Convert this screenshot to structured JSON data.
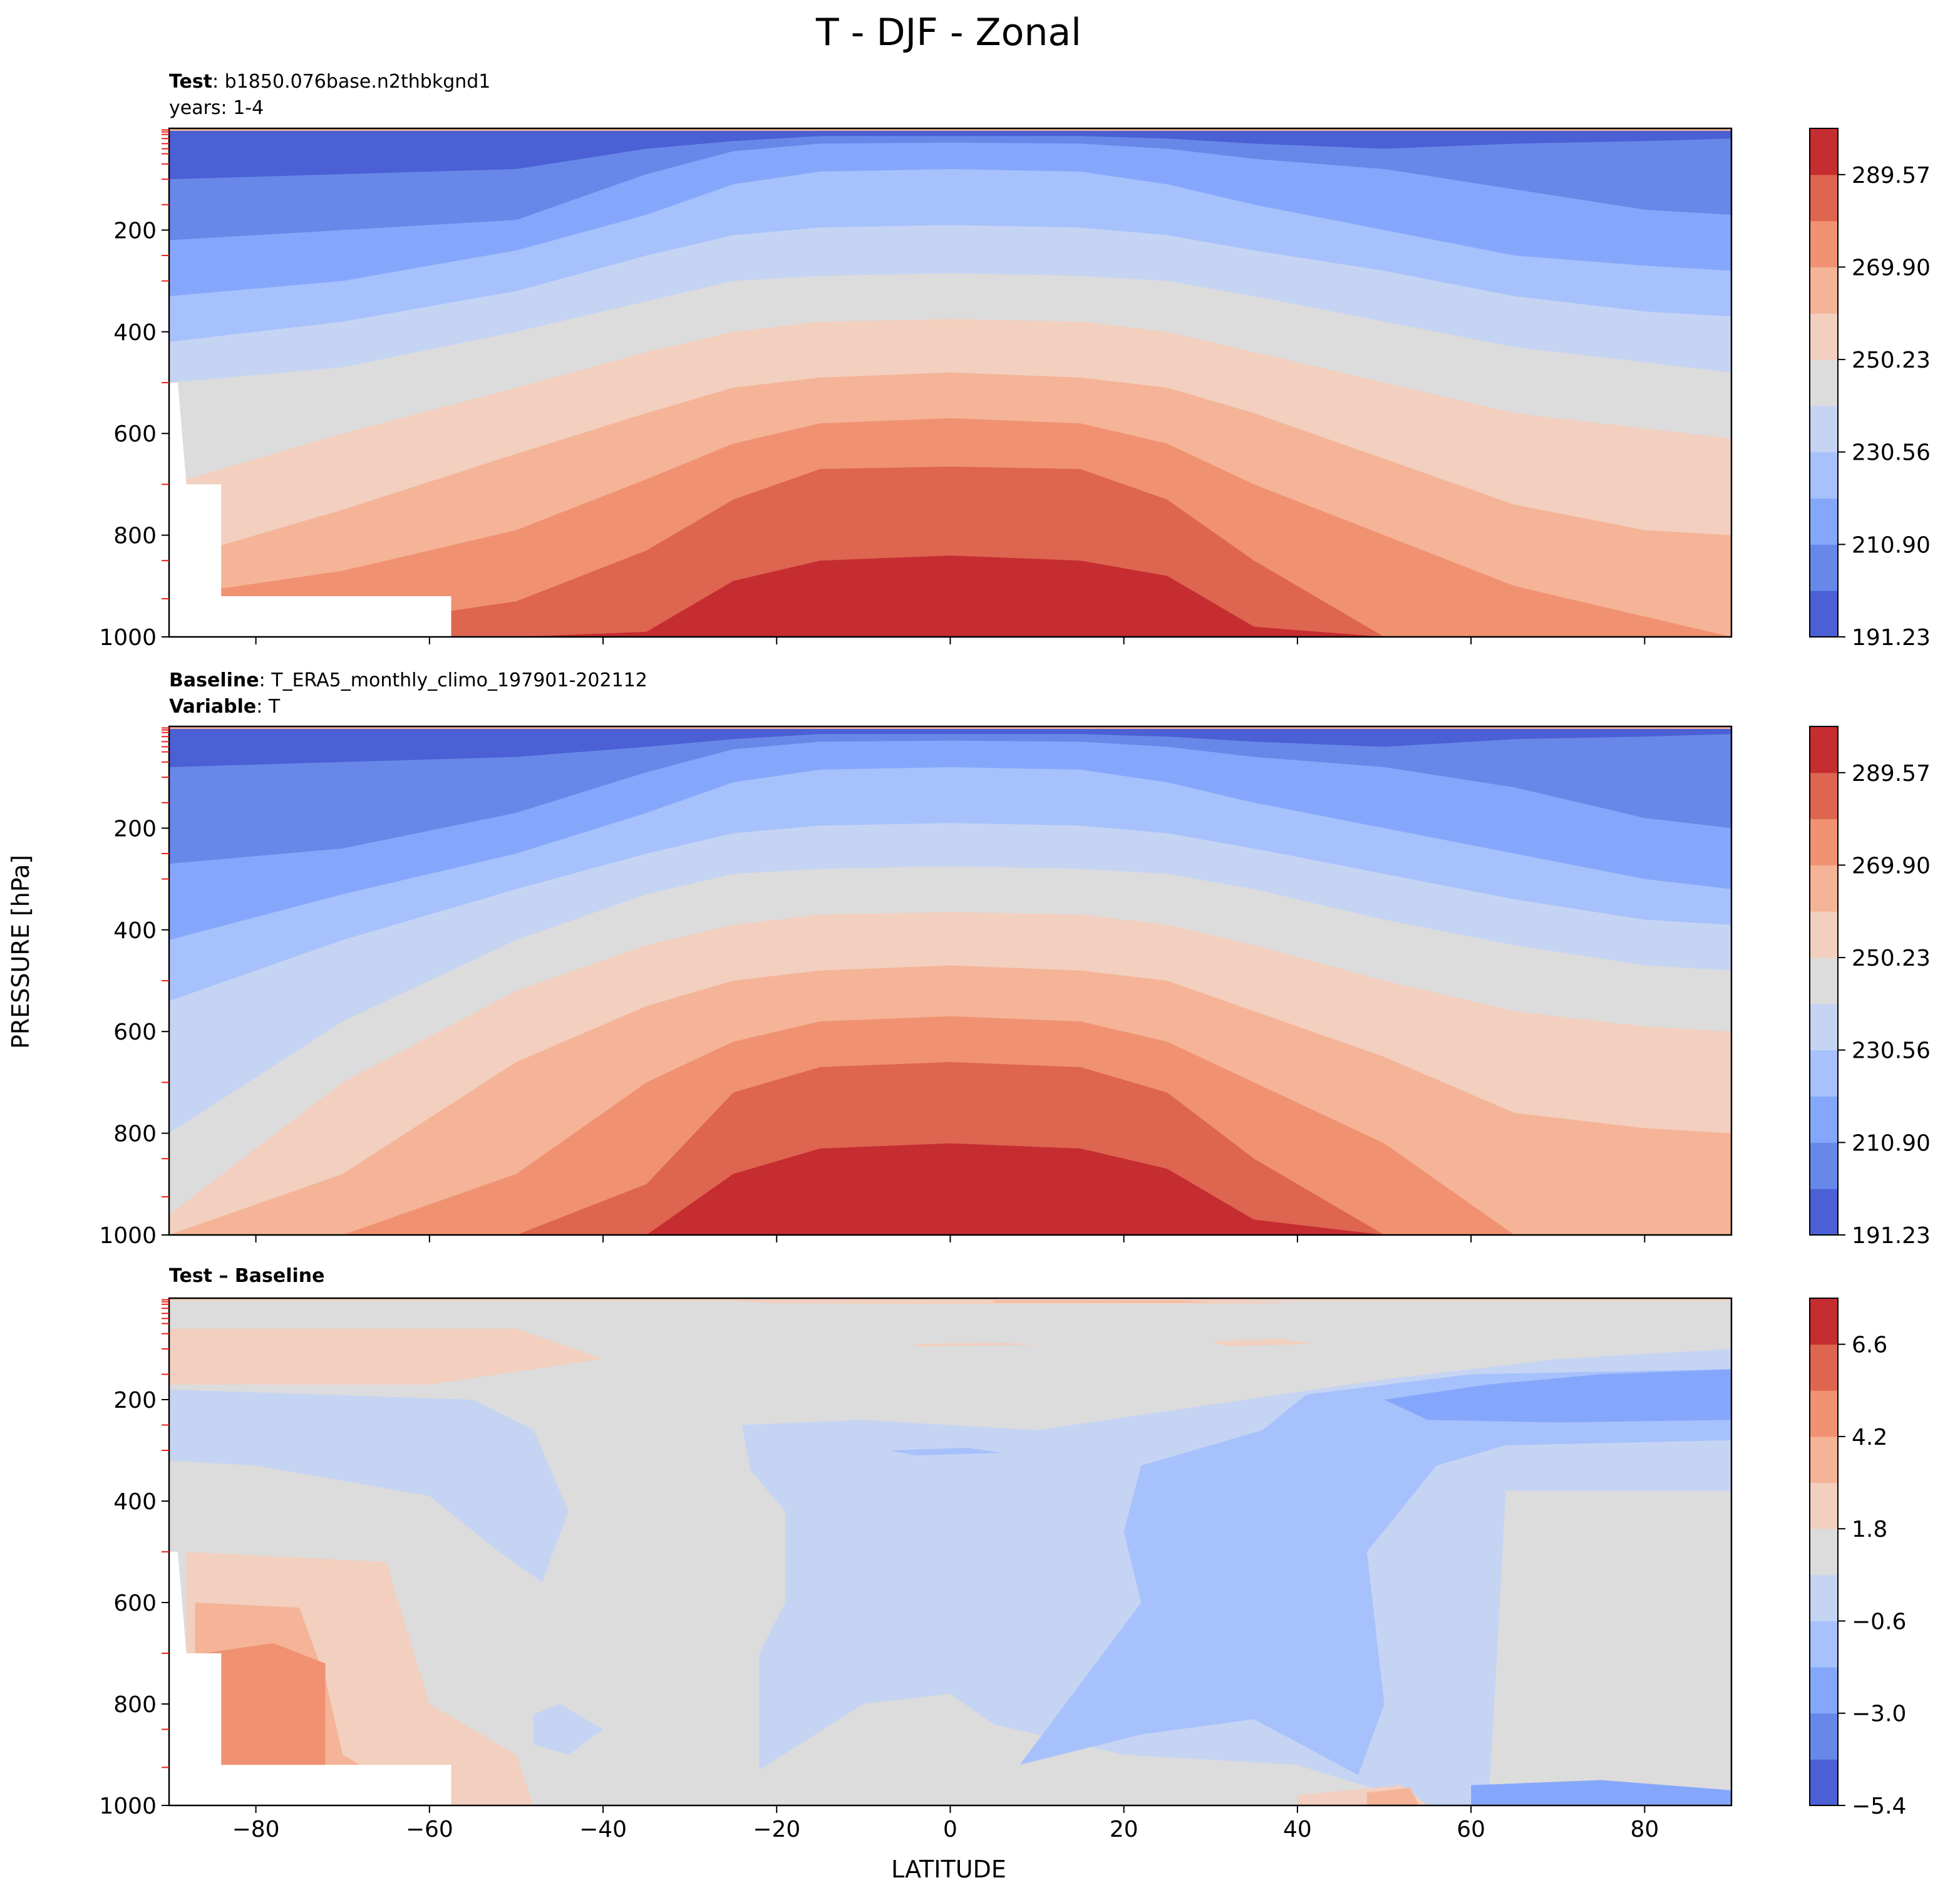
{
  "figure": {
    "title": "T - DJF - Zonal",
    "ylabel": "PRESSURE [hPa]",
    "xlabel": "LATITUDE"
  },
  "chart_data": [
    {
      "type": "contour",
      "id": "test",
      "header_lines": [
        {
          "bold": "Test",
          "text": ": b1850.076base.n2thbkgnd1"
        },
        {
          "bold": "",
          "text": "years: 1-4"
        }
      ],
      "x": {
        "label": "LATITUDE",
        "range": [
          -90,
          90
        ],
        "ticks": [
          -80,
          -60,
          -40,
          -20,
          0,
          20,
          40,
          60,
          80
        ],
        "tick_labels_shown": false
      },
      "y": {
        "label": "PRESSURE [hPa]",
        "range": [
          0,
          1000
        ],
        "inverted": true,
        "ticks": [
          200,
          400,
          600,
          800,
          1000
        ]
      },
      "levels": [
        191.23,
        201.07,
        210.9,
        220.73,
        230.56,
        240.4,
        250.23,
        260.07,
        269.9,
        279.73,
        289.57,
        299.4
      ],
      "colorbar_ticks": [
        "289.57",
        "269.90",
        "250.23",
        "230.56",
        "210.90",
        "191.23"
      ],
      "colors": [
        "#4b60d4",
        "#6788e9",
        "#85a7fb",
        "#a7c1fc",
        "#c5d4f3",
        "#dcdcdc",
        "#f2cfbe",
        "#f5b497",
        "#f09272",
        "#de6550",
        "#c52d31"
      ],
      "contours_lat": [
        -90,
        -70,
        -50,
        -35,
        -25,
        -15,
        0,
        15,
        25,
        35,
        50,
        65,
        80,
        90
      ],
      "contours_p": [
        [
          60,
          50,
          45,
          20,
          10,
          10,
          10,
          10,
          10,
          10,
          10,
          10,
          10,
          10
        ],
        [
          100,
          90,
          80,
          40,
          25,
          15,
          15,
          15,
          20,
          30,
          40,
          30,
          25,
          20
        ],
        [
          220,
          200,
          180,
          90,
          45,
          30,
          28,
          30,
          40,
          60,
          80,
          120,
          160,
          170
        ],
        [
          330,
          300,
          240,
          170,
          110,
          85,
          80,
          85,
          110,
          150,
          200,
          250,
          270,
          280
        ],
        [
          420,
          380,
          320,
          250,
          210,
          195,
          190,
          195,
          210,
          240,
          280,
          330,
          360,
          370
        ],
        [
          500,
          470,
          400,
          340,
          300,
          290,
          285,
          290,
          300,
          330,
          380,
          430,
          460,
          480
        ],
        [
          700,
          600,
          510,
          440,
          400,
          380,
          375,
          380,
          400,
          440,
          500,
          560,
          590,
          610
        ],
        [
          850,
          750,
          640,
          560,
          510,
          490,
          480,
          490,
          510,
          560,
          650,
          740,
          790,
          800
        ],
        [
          920,
          870,
          790,
          690,
          620,
          580,
          570,
          580,
          620,
          700,
          800,
          900,
          960,
          1000
        ],
        [
          1000,
          980,
          930,
          830,
          730,
          670,
          665,
          670,
          730,
          850,
          1000,
          1000,
          1000,
          1000
        ],
        [
          1000,
          1000,
          1000,
          990,
          890,
          850,
          840,
          850,
          880,
          980,
          1000,
          1000,
          1000,
          1000
        ]
      ],
      "missing_region": true
    },
    {
      "type": "contour",
      "id": "baseline",
      "header_lines": [
        {
          "bold": "Baseline",
          "text": ": T_ERA5_monthly_climo_197901-202112"
        },
        {
          "bold": "Variable",
          "text": ": T"
        }
      ],
      "x": {
        "label": "LATITUDE",
        "range": [
          -90,
          90
        ],
        "ticks": [
          -80,
          -60,
          -40,
          -20,
          0,
          20,
          40,
          60,
          80
        ],
        "tick_labels_shown": false
      },
      "y": {
        "label": "PRESSURE [hPa]",
        "range": [
          0,
          1000
        ],
        "inverted": true,
        "ticks": [
          200,
          400,
          600,
          800,
          1000
        ]
      },
      "levels": [
        191.23,
        201.07,
        210.9,
        220.73,
        230.56,
        240.4,
        250.23,
        260.07,
        269.9,
        279.73,
        289.57,
        299.4
      ],
      "colorbar_ticks": [
        "289.57",
        "269.90",
        "250.23",
        "230.56",
        "210.90",
        "191.23"
      ],
      "colors": [
        "#4b60d4",
        "#6788e9",
        "#85a7fb",
        "#a7c1fc",
        "#c5d4f3",
        "#dcdcdc",
        "#f2cfbe",
        "#f5b497",
        "#f09272",
        "#de6550",
        "#c52d31"
      ],
      "contours_lat": [
        -90,
        -70,
        -50,
        -35,
        -25,
        -15,
        0,
        15,
        25,
        35,
        50,
        65,
        80,
        90
      ],
      "contours_p": [
        [
          60,
          50,
          45,
          20,
          10,
          10,
          10,
          10,
          10,
          10,
          10,
          10,
          10,
          10
        ],
        [
          80,
          70,
          60,
          40,
          25,
          15,
          15,
          15,
          20,
          30,
          40,
          25,
          20,
          15
        ],
        [
          270,
          240,
          170,
          90,
          45,
          30,
          28,
          30,
          40,
          60,
          80,
          120,
          180,
          200
        ],
        [
          420,
          330,
          250,
          170,
          110,
          85,
          80,
          85,
          110,
          150,
          200,
          250,
          300,
          320
        ],
        [
          540,
          420,
          320,
          250,
          210,
          195,
          190,
          195,
          210,
          240,
          290,
          340,
          380,
          390
        ],
        [
          800,
          580,
          420,
          330,
          290,
          280,
          275,
          280,
          290,
          320,
          380,
          430,
          470,
          480
        ],
        [
          960,
          700,
          520,
          430,
          390,
          370,
          365,
          370,
          390,
          430,
          500,
          560,
          590,
          600
        ],
        [
          1000,
          880,
          660,
          550,
          500,
          480,
          470,
          480,
          500,
          560,
          650,
          760,
          790,
          800
        ],
        [
          1000,
          1000,
          880,
          700,
          620,
          580,
          570,
          580,
          620,
          700,
          820,
          1000,
          1000,
          1000
        ],
        [
          1000,
          1000,
          1000,
          900,
          720,
          670,
          660,
          670,
          720,
          850,
          1000,
          1000,
          1000,
          1000
        ],
        [
          1000,
          1000,
          1000,
          1000,
          880,
          830,
          820,
          830,
          870,
          970,
          1000,
          1000,
          1000,
          1000
        ]
      ],
      "missing_region": false
    },
    {
      "type": "contour",
      "id": "diff",
      "header_lines": [
        {
          "bold": "Test – Baseline",
          "text": ""
        }
      ],
      "x": {
        "label": "LATITUDE",
        "range": [
          -90,
          90
        ],
        "ticks": [
          -80,
          -60,
          -40,
          -20,
          0,
          20,
          40,
          60,
          80
        ],
        "tick_labels_shown": true
      },
      "y": {
        "label": "PRESSURE [hPa]",
        "range": [
          0,
          1000
        ],
        "inverted": true,
        "ticks": [
          200,
          400,
          600,
          800,
          1000
        ]
      },
      "levels": [
        -6.6,
        -5.4,
        -4.2,
        -3.0,
        -1.8,
        -0.6,
        0.6,
        1.8,
        3.0,
        4.2,
        5.4,
        6.6
      ],
      "colorbar_ticks": [
        "6.6",
        "4.2",
        "1.8",
        "−0.6",
        "−3.0",
        "−5.4"
      ],
      "colors": [
        "#4b60d4",
        "#6788e9",
        "#85a7fb",
        "#a7c1fc",
        "#c5d4f3",
        "#dcdcdc",
        "#f2cfbe",
        "#f5b497",
        "#f09272",
        "#de6550",
        "#c52d31"
      ],
      "regions": [
        {
          "level_index": 6,
          "polygon": [
            [
              -90,
              60
            ],
            [
              -50,
              60
            ],
            [
              -40,
              120
            ],
            [
              -60,
              170
            ],
            [
              -90,
              170
            ]
          ]
        },
        {
          "level_index": 6,
          "polygon": [
            [
              -88,
              500
            ],
            [
              -65,
              520
            ],
            [
              -60,
              800
            ],
            [
              -50,
              900
            ],
            [
              -48,
              1000
            ],
            [
              -88,
              1000
            ]
          ]
        },
        {
          "level_index": 7,
          "polygon": [
            [
              -87,
              600
            ],
            [
              -75,
              610
            ],
            [
              -72,
              750
            ],
            [
              -70,
              900
            ],
            [
              -60,
              1000
            ],
            [
              -87,
              1000
            ]
          ]
        },
        {
          "level_index": 8,
          "polygon": [
            [
              -86,
              700
            ],
            [
              -78,
              680
            ],
            [
              -72,
              720
            ],
            [
              -72,
              950
            ],
            [
              -80,
              990
            ],
            [
              -86,
              990
            ]
          ]
        },
        {
          "level_index": 3,
          "polygon": [
            [
              -90,
              240
            ],
            [
              -80,
              220
            ],
            [
              -65,
              215
            ],
            [
              -55,
              250
            ],
            [
              -65,
              290
            ],
            [
              -80,
              285
            ],
            [
              -90,
              280
            ]
          ]
        },
        {
          "level_index": 2,
          "polygon": [
            [
              -88,
              250
            ],
            [
              -75,
              240
            ],
            [
              -65,
              235
            ],
            [
              -60,
              255
            ],
            [
              -70,
              265
            ],
            [
              -88,
              262
            ]
          ]
        },
        {
          "level_index": 4,
          "polygon": [
            [
              -90,
              180
            ],
            [
              -55,
              200
            ],
            [
              -48,
              260
            ],
            [
              -44,
              420
            ],
            [
              -47,
              560
            ],
            [
              -52,
              500
            ],
            [
              -60,
              390
            ],
            [
              -80,
              330
            ],
            [
              -90,
              320
            ]
          ]
        },
        {
          "level_index": 4,
          "polygon": [
            [
              -24,
              250
            ],
            [
              -10,
              240
            ],
            [
              10,
              260
            ],
            [
              22,
              230
            ],
            [
              34,
              200
            ],
            [
              50,
              160
            ],
            [
              70,
              120
            ],
            [
              90,
              100
            ],
            [
              90,
              380
            ],
            [
              64,
              380
            ],
            [
              63,
              700
            ],
            [
              62,
              1000
            ],
            [
              55,
              1000
            ],
            [
              40,
              920
            ],
            [
              20,
              900
            ],
            [
              5,
              840
            ],
            [
              0,
              780
            ],
            [
              -10,
              800
            ],
            [
              -22,
              930
            ],
            [
              -22,
              700
            ],
            [
              -19,
              600
            ],
            [
              -19,
              420
            ],
            [
              -23,
              340
            ]
          ]
        },
        {
          "level_index": 3,
          "polygon": [
            [
              22,
              330
            ],
            [
              36,
              260
            ],
            [
              41,
              190
            ],
            [
              60,
              150
            ],
            [
              90,
              140
            ],
            [
              90,
              280
            ],
            [
              64,
              290
            ],
            [
              56,
              330
            ],
            [
              48,
              500
            ],
            [
              50,
              800
            ],
            [
              47,
              940
            ],
            [
              35,
              830
            ],
            [
              22,
              860
            ],
            [
              8,
              920
            ],
            [
              22,
              600
            ],
            [
              20,
              460
            ]
          ]
        },
        {
          "level_index": 2,
          "polygon": [
            [
              50,
              200
            ],
            [
              62,
              170
            ],
            [
              75,
              150
            ],
            [
              90,
              140
            ],
            [
              90,
              240
            ],
            [
              70,
              245
            ],
            [
              55,
              240
            ]
          ]
        },
        {
          "level_index": 4,
          "polygon": [
            [
              -48,
              880
            ],
            [
              -44,
              900
            ],
            [
              -40,
              850
            ],
            [
              -45,
              800
            ],
            [
              -48,
              820
            ]
          ]
        },
        {
          "level_index": 2,
          "polygon": [
            [
              60,
              960
            ],
            [
              75,
              950
            ],
            [
              90,
              970
            ],
            [
              90,
              1000
            ],
            [
              60,
              1000
            ]
          ]
        },
        {
          "level_index": 6,
          "polygon": [
            [
              -30,
              2
            ],
            [
              30,
              2
            ],
            [
              40,
              10
            ],
            [
              10,
              12
            ],
            [
              -20,
              10
            ]
          ]
        },
        {
          "level_index": 7,
          "polygon": [
            [
              5,
              3
            ],
            [
              25,
              3
            ],
            [
              30,
              8
            ],
            [
              5,
              8
            ]
          ]
        },
        {
          "level_index": 6,
          "polygon": [
            [
              30,
              85
            ],
            [
              38,
              80
            ],
            [
              42,
              90
            ],
            [
              32,
              95
            ]
          ]
        },
        {
          "level_index": 6,
          "polygon": [
            [
              -4,
              90
            ],
            [
              6,
              88
            ],
            [
              10,
              92
            ],
            [
              -4,
              95
            ]
          ]
        },
        {
          "level_index": 6,
          "polygon": [
            [
              40,
              980
            ],
            [
              52,
              960
            ],
            [
              55,
              1000
            ],
            [
              40,
              1000
            ]
          ]
        },
        {
          "level_index": 7,
          "polygon": [
            [
              48,
              975
            ],
            [
              53,
              965
            ],
            [
              54,
              1000
            ],
            [
              48,
              1000
            ]
          ]
        },
        {
          "level_index": 3,
          "polygon": [
            [
              -7,
              300
            ],
            [
              2,
              295
            ],
            [
              6,
              305
            ],
            [
              -4,
              310
            ]
          ]
        }
      ],
      "missing_region": true
    }
  ]
}
